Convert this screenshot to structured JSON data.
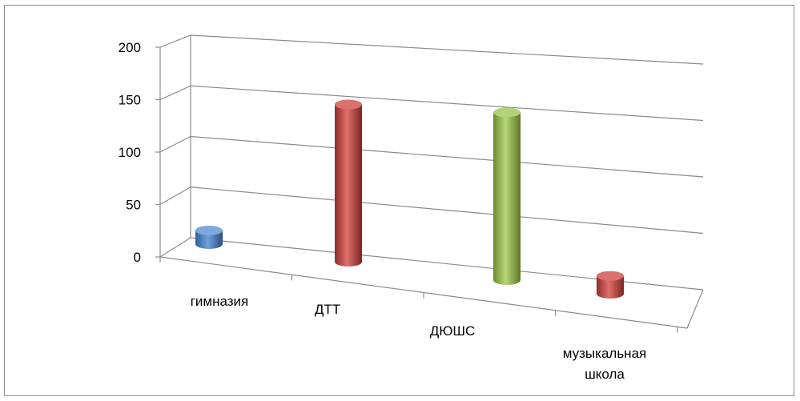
{
  "chart_data": {
    "type": "bar",
    "style": "3d-cylinder",
    "categories": [
      "гимназия",
      "ДТТ",
      "ДЮШС",
      "музыкальная школа"
    ],
    "category_lines": [
      [
        "гимназия"
      ],
      [
        "ДТТ"
      ],
      [
        "ДЮШС"
      ],
      [
        "музыкальная",
        "школа"
      ]
    ],
    "values": [
      13,
      150,
      160,
      17
    ],
    "colors": [
      "#4f81bd",
      "#c0504d",
      "#9bbb59",
      "#c0504d"
    ],
    "yticks": [
      "0",
      "50",
      "100",
      "150",
      "200"
    ],
    "ylim": [
      0,
      200
    ],
    "grid": true,
    "legend": "none",
    "title": "",
    "xlabel": "",
    "ylabel": ""
  }
}
